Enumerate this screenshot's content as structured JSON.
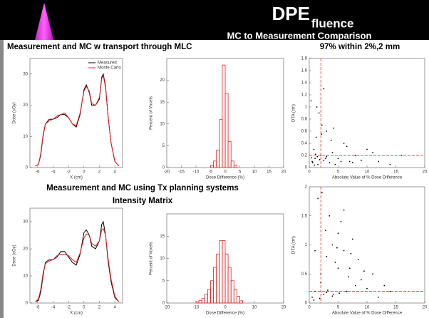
{
  "header": {
    "title": "DPE",
    "title_subscript": "fluence",
    "subtitle": "MC to Measurement Comparison"
  },
  "captions": [
    "Measurement and MC w transport through MLC",
    "97% within 2%,2 mm",
    "Measurement and MC using Tx planning systems",
    "Intensity Matrix"
  ],
  "chart_data": [
    {
      "type": "line",
      "x_label": "X (cm)",
      "y_label": "Dose (cGy)",
      "legend": "upper right",
      "x": [
        -6.3,
        -5.9,
        -5.6,
        -5.3,
        -5.0,
        -4.5,
        -4.0,
        -3.5,
        -3.0,
        -2.5,
        -2.0,
        -1.5,
        -1.0,
        -0.5,
        0.0,
        0.3,
        0.7,
        1.0,
        1.5,
        2.0,
        2.3,
        2.5,
        2.8,
        3.1,
        3.5,
        4.0,
        4.5
      ],
      "series": [
        {
          "name": "Measured",
          "color": "#000000",
          "values": [
            0.5,
            1,
            4,
            10,
            14,
            15.5,
            15.5,
            16,
            17,
            17,
            16,
            14,
            13,
            17,
            25,
            26.5,
            24,
            20,
            20,
            22,
            29,
            30,
            26,
            17,
            8,
            2,
            0.5
          ]
        },
        {
          "name": "Monte Carlo",
          "color": "#e02020",
          "values": [
            0.5,
            1,
            4.5,
            10.5,
            14,
            15,
            15.5,
            16.5,
            17,
            17.5,
            16,
            14,
            13.5,
            17.5,
            24.5,
            26,
            24.5,
            20.5,
            20,
            22.5,
            28.5,
            29.5,
            25.5,
            17,
            8,
            2,
            0.5
          ]
        }
      ],
      "xlim": [
        -7,
        5
      ],
      "xticks": [
        -6,
        -4,
        -2,
        0,
        2,
        4
      ],
      "ylim": [
        0,
        35
      ],
      "yticks": [
        0,
        10,
        20,
        30
      ]
    },
    {
      "type": "histogram",
      "x_label": "Dose Difference (%)",
      "y_label": "Percent of Voxels",
      "color": "#e02020",
      "bins": [
        -5,
        -4,
        -3,
        -2,
        -1,
        0,
        1,
        2,
        3,
        4
      ],
      "values": [
        0.5,
        1.5,
        4,
        11,
        23.5,
        17,
        6,
        1.5,
        0.5
      ],
      "xlim": [
        -20,
        20
      ],
      "xticks": [
        -20,
        -15,
        -10,
        -5,
        0,
        5,
        10,
        15,
        20
      ],
      "ylim": [
        0,
        25
      ],
      "yticks": [
        0,
        5,
        10,
        15,
        20
      ]
    },
    {
      "type": "scatter",
      "x_label": "Absolute Value of % Dose Difference",
      "y_label": "DTA (cm)",
      "color": "#000000",
      "threshold_color": "#e02020",
      "threshold_x": 2,
      "threshold_y": 0.2,
      "x": [
        0.5,
        1,
        1.5,
        2,
        2.5,
        3,
        0.8,
        1.2,
        3.5,
        4,
        5,
        6,
        7,
        2.2,
        1.7,
        0.3,
        4.5,
        8,
        10,
        12,
        3,
        2.8,
        1.1,
        0.6,
        6.5,
        9,
        14,
        2.5,
        1.4,
        0.9,
        3.8,
        5.5,
        1.8,
        11,
        0.4,
        2.1,
        7.5,
        4.2,
        16,
        1.3
      ],
      "y": [
        0.1,
        0.15,
        0.05,
        0.2,
        0.12,
        0.18,
        0.3,
        0.5,
        0.08,
        0.25,
        0.15,
        0.4,
        0.1,
        0.7,
        0.9,
        1.1,
        0.05,
        0.2,
        0.3,
        0.1,
        0.6,
        0.15,
        0.22,
        0.08,
        0.35,
        0.12,
        0.05,
        1.3,
        0.18,
        0.04,
        0.45,
        0.1,
        0.13,
        0.25,
        0.16,
        0.55,
        0.08,
        0.65,
        0.2,
        1.0
      ],
      "xlim": [
        0,
        20
      ],
      "xticks": [
        0,
        5,
        10,
        15,
        20
      ],
      "ylim": [
        0,
        1.8
      ],
      "yticks": [
        0,
        0.2,
        0.4,
        0.6,
        0.8,
        1,
        1.2,
        1.4,
        1.6,
        1.8
      ]
    },
    {
      "type": "line",
      "x_label": "X (cm)",
      "y_label": "Dose (cGy)",
      "x": [
        -6.3,
        -5.9,
        -5.6,
        -5.3,
        -5.0,
        -4.5,
        -4.0,
        -3.5,
        -3.0,
        -2.5,
        -2.0,
        -1.5,
        -1.0,
        -0.5,
        0.0,
        0.3,
        0.7,
        1.0,
        1.5,
        2.0,
        2.3,
        2.5,
        2.8,
        3.1,
        3.5,
        4.0,
        4.5
      ],
      "series": [
        {
          "name": "Measured",
          "color": "#000000",
          "values": [
            0.5,
            1,
            4,
            10,
            15,
            16,
            16,
            17,
            19,
            19,
            17,
            15,
            14,
            18,
            26,
            27,
            25,
            21,
            20,
            23,
            29,
            30,
            25,
            16,
            8,
            2,
            0.5
          ]
        },
        {
          "name": "Monte Carlo",
          "color": "#e02020",
          "values": [
            0.5,
            1.5,
            5,
            11,
            14.5,
            15.5,
            16,
            17.5,
            18,
            18,
            17.5,
            16,
            15,
            18.5,
            24,
            25.5,
            25,
            22,
            21,
            23,
            27,
            27.5,
            25,
            17,
            9,
            2.5,
            0.5
          ]
        }
      ],
      "xlim": [
        -7,
        5
      ],
      "xticks": [
        -6,
        -4,
        -2,
        0,
        2,
        4
      ],
      "ylim": [
        0,
        35
      ],
      "yticks": [
        0,
        10,
        20,
        30
      ]
    },
    {
      "type": "histogram",
      "x_label": "Dose Difference (%)",
      "y_label": "Percent of Voxels",
      "color": "#e02020",
      "bins": [
        -10,
        -9,
        -8,
        -7,
        -6,
        -5,
        -4,
        -3,
        -2,
        -1,
        0,
        1,
        2,
        3,
        4,
        5,
        6
      ],
      "values": [
        0.3,
        0.6,
        1,
        2,
        3,
        5,
        8,
        11,
        14,
        14,
        11,
        8,
        5,
        3,
        1.5,
        0.5
      ],
      "xlim": [
        -20,
        20
      ],
      "xticks": [
        -20,
        -10,
        0,
        10,
        20
      ],
      "ylim": [
        0,
        20
      ],
      "yticks": [
        0,
        5,
        10,
        15
      ]
    },
    {
      "type": "scatter",
      "x_label": "Absolute Value of % Dose Difference",
      "y_label": "DTA (cm)",
      "color": "#000000",
      "threshold_color": "#e02020",
      "threshold_x": 2,
      "threshold_y": 0.2,
      "x": [
        0.5,
        1,
        2,
        3,
        4,
        5,
        6,
        7,
        8,
        3.5,
        2.5,
        1.5,
        4.5,
        5.5,
        6.5,
        7.5,
        9,
        10,
        12,
        3,
        4,
        5,
        6,
        2,
        1,
        8.5,
        11,
        14,
        0.8,
        2.8,
        4.8,
        6.8,
        3.2,
        5.2,
        7.2,
        1.8,
        9.5,
        13,
        2.2,
        4.2
      ],
      "y": [
        0.1,
        0.2,
        0.5,
        0.8,
        1.0,
        1.2,
        0.9,
        0.6,
        0.3,
        1.5,
        0.15,
        1.8,
        0.7,
        1.4,
        0.2,
        1.1,
        0.4,
        0.25,
        0.1,
        0.18,
        0.12,
        0.6,
        1.6,
        0.35,
        0.9,
        0.75,
        0.5,
        0.2,
        0.05,
        1.25,
        0.95,
        0.45,
        0.22,
        0.17,
        0.85,
        0.08,
        0.55,
        0.3,
        1.9,
        0.15
      ],
      "xlim": [
        0,
        20
      ],
      "xticks": [
        0,
        5,
        10,
        15,
        20
      ],
      "ylim": [
        0,
        2
      ],
      "yticks": [
        0,
        0.5,
        1,
        1.5,
        2
      ]
    }
  ]
}
